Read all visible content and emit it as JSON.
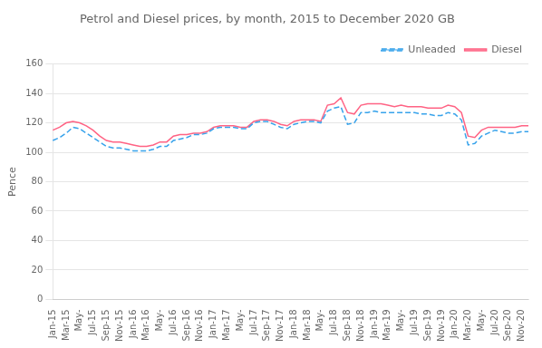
{
  "chart_data": {
    "type": "line",
    "title": "Petrol and Diesel prices, by month, 2015 to December 2020 GB",
    "ylabel": "Pence",
    "categories": [
      "Jan-15",
      null,
      "Mar-15",
      null,
      "May-",
      null,
      "Jul-15",
      null,
      "Sep-15",
      null,
      "Nov-15",
      null,
      "Jan-16",
      null,
      "Mar-16",
      null,
      "May-",
      null,
      "Jul-16",
      null,
      "Sep-16",
      null,
      "Nov-16",
      null,
      "Jan-17",
      null,
      "Mar-17",
      null,
      "May-",
      null,
      "Jul-17",
      null,
      "Sep-17",
      null,
      "Nov-17",
      null,
      "Jan-18",
      null,
      "Mar-18",
      null,
      "May-",
      null,
      "Jul-18",
      null,
      "Sep-18",
      null,
      "Nov-18",
      null,
      "Jan-19",
      null,
      "Mar-19",
      null,
      "May-",
      null,
      "Jul-19",
      null,
      "Sep-19",
      null,
      "Nov-19",
      null,
      "Jan-20",
      null,
      "Mar-20",
      null,
      "May-",
      null,
      "Jul-20",
      null,
      "Sep-20",
      null,
      "Nov-20",
      null
    ],
    "series": [
      {
        "name": "Unleaded",
        "line_style": "dashed",
        "values": [
          108,
          110,
          113,
          117,
          116,
          113,
          110,
          107,
          104,
          103,
          103,
          102,
          101,
          101,
          101,
          102,
          104,
          104,
          108,
          109,
          110,
          112,
          112,
          113,
          116,
          117,
          117,
          117,
          116,
          116,
          120,
          121,
          121,
          119,
          117,
          116,
          119,
          120,
          121,
          121,
          120,
          128,
          130,
          131,
          119,
          120,
          127,
          127,
          128,
          127,
          127,
          127,
          127,
          127,
          127,
          126,
          126,
          125,
          125,
          127,
          126,
          122,
          105,
          106,
          111,
          113,
          115,
          114,
          113,
          113,
          114,
          114
        ]
      },
      {
        "name": "Diesel",
        "line_style": "solid",
        "values": [
          115,
          117,
          120,
          121,
          120,
          118,
          115,
          111,
          108,
          107,
          107,
          106,
          105,
          104,
          104,
          105,
          107,
          107,
          111,
          112,
          112,
          113,
          113,
          114,
          117,
          118,
          118,
          118,
          117,
          117,
          121,
          122,
          122,
          121,
          119,
          118,
          121,
          122,
          122,
          122,
          121,
          132,
          133,
          137,
          127,
          126,
          132,
          133,
          133,
          133,
          132,
          131,
          132,
          131,
          131,
          131,
          130,
          130,
          130,
          132,
          131,
          127,
          111,
          110,
          115,
          117,
          117,
          117,
          117,
          117,
          118,
          118
        ]
      }
    ],
    "ylim": [
      0,
      160
    ],
    "yticks": [
      0,
      20,
      40,
      60,
      80,
      100,
      120,
      140,
      160
    ],
    "grid": "y",
    "legend": "upper right"
  }
}
